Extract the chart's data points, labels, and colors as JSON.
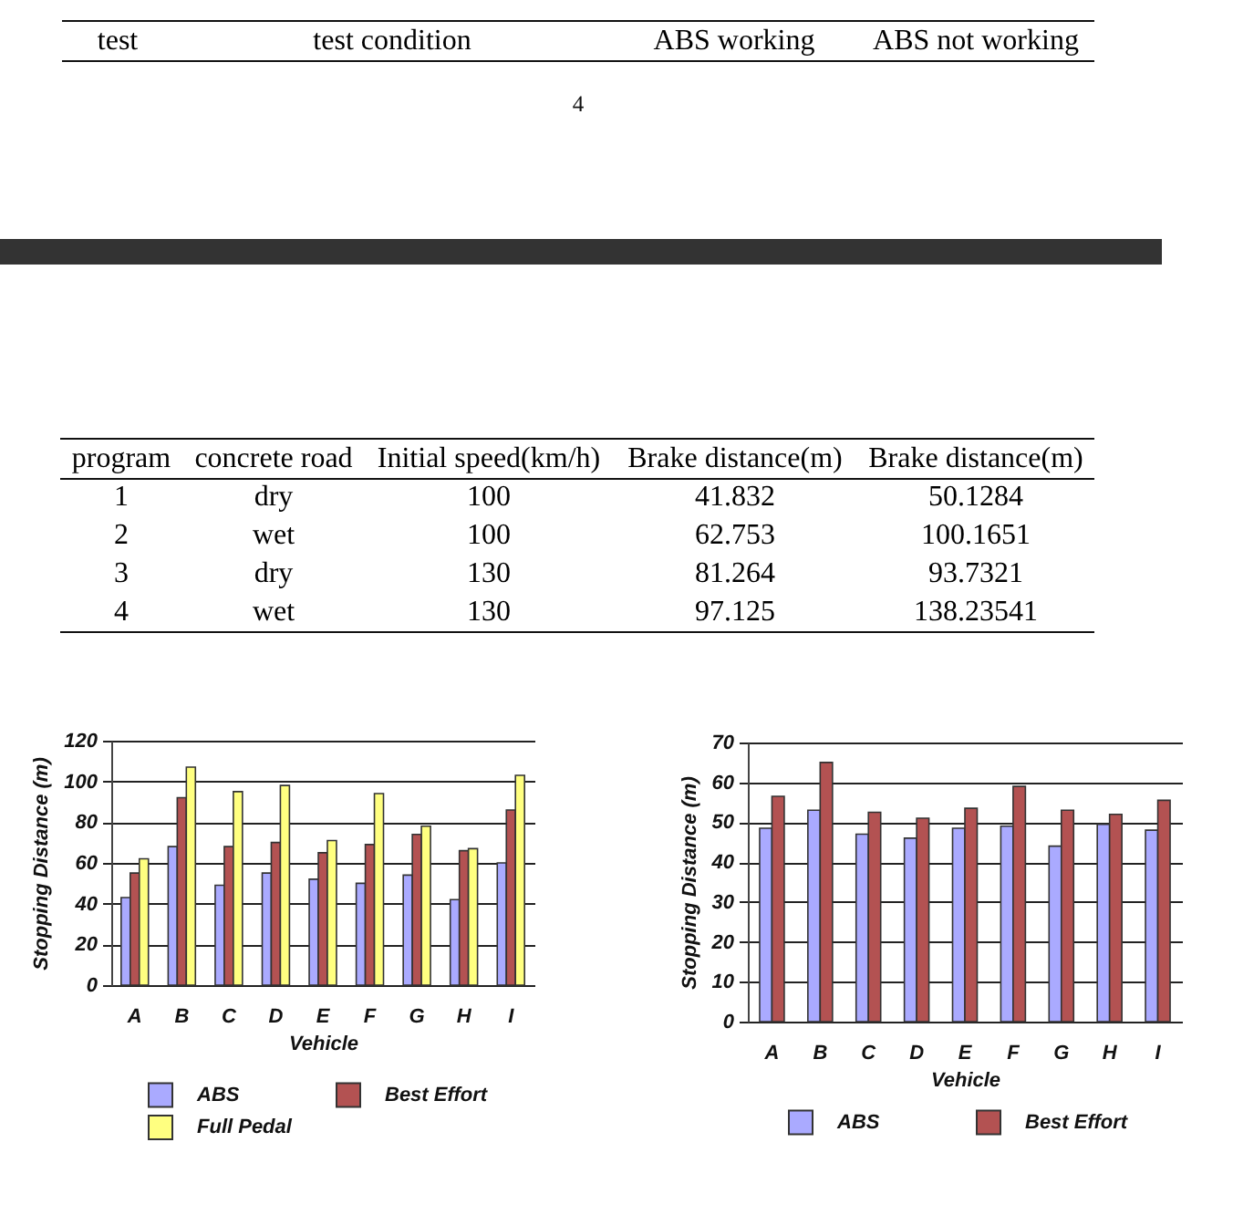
{
  "chart_data": [
    {
      "type": "other",
      "categories": [
        "test",
        "test condition",
        "ABS working",
        "ABS not working"
      ],
      "annotations": [
        "4"
      ]
    },
    {
      "type": "heatmap",
      "ylabel": "program",
      "categories": [
        "concrete road",
        "Initial speed(km/h)",
        "Brake distance(m)",
        "Brake distance(m)"
      ],
      "y_categories": [
        "1",
        "2",
        "3",
        "4"
      ],
      "cells": [
        [
          null,
          null,
          null,
          null
        ],
        [
          null,
          null,
          null,
          null
        ],
        [
          null,
          null,
          null,
          null
        ],
        [
          null,
          null,
          null,
          null
        ]
      ],
      "cell_labels": [
        [
          "dry",
          "100",
          "41.832",
          "50.1284"
        ],
        [
          "wet",
          "100",
          "62.753",
          "100.1651"
        ],
        [
          "dry",
          "130",
          "81.264",
          "93.7321"
        ],
        [
          "wet",
          "130",
          "97.125",
          "138.23541"
        ]
      ]
    },
    {
      "type": "bar",
      "categories": [
        "A",
        "B",
        "C",
        "D",
        "E",
        "F",
        "G",
        "H",
        "I"
      ],
      "xlabel": "Vehicle",
      "ylabel": "Stopping Distance (m)",
      "ylim": [
        0,
        120
      ],
      "yticks": [
        0,
        20,
        40,
        60,
        80,
        100,
        120
      ],
      "grid": "y",
      "legend": "bottom",
      "series": [
        {
          "name": "ABS",
          "color": "#aaaaff",
          "values": [
            43,
            68,
            49,
            55,
            52,
            50,
            54,
            42,
            60
          ]
        },
        {
          "name": "Best Effort",
          "color": "#b35252",
          "values": [
            55,
            92,
            68,
            70,
            65,
            69,
            74,
            66,
            86
          ]
        },
        {
          "name": "Full Pedal",
          "color": "#ffff80",
          "values": [
            62,
            107,
            95,
            98,
            71,
            94,
            78,
            67,
            103
          ]
        }
      ]
    },
    {
      "type": "bar",
      "categories": [
        "A",
        "B",
        "C",
        "D",
        "E",
        "F",
        "G",
        "H",
        "I"
      ],
      "xlabel": "Vehicle",
      "ylabel": "Stopping Distance (m)",
      "ylim": [
        0,
        70
      ],
      "yticks": [
        0,
        10,
        20,
        30,
        40,
        50,
        60,
        70
      ],
      "grid": "y",
      "legend": "bottom",
      "series": [
        {
          "name": "ABS",
          "color": "#aaaaff",
          "values": [
            48.5,
            53,
            47,
            46,
            48.5,
            49,
            44,
            49.5,
            48
          ]
        },
        {
          "name": "Best Effort",
          "color": "#b35252",
          "values": [
            56.5,
            65,
            52.5,
            51,
            53.5,
            59,
            53,
            52,
            55.5
          ]
        }
      ]
    }
  ]
}
